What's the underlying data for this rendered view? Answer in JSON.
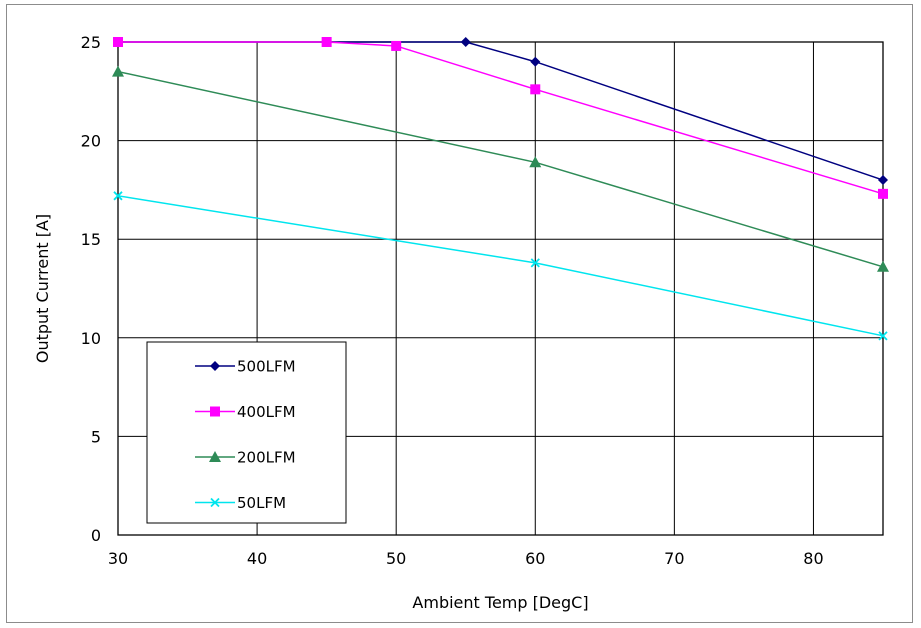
{
  "chart_data": {
    "type": "line",
    "title": "",
    "xlabel": "Ambient Temp [DegC]",
    "ylabel": "Output Current [A]",
    "xlim": [
      30,
      85
    ],
    "ylim": [
      0,
      25
    ],
    "xticks": [
      30,
      40,
      50,
      60,
      70,
      80
    ],
    "yticks": [
      0,
      5,
      10,
      15,
      20,
      25
    ],
    "grid": true,
    "legend_position": "bottom-left",
    "series": [
      {
        "name": "500LFM",
        "color": "#000080",
        "marker": "diamond",
        "x": [
          30,
          55,
          60,
          85
        ],
        "y": [
          25,
          25,
          24,
          18
        ]
      },
      {
        "name": "400LFM",
        "color": "#ff00ff",
        "marker": "square",
        "x": [
          30,
          45,
          50,
          60,
          85
        ],
        "y": [
          25,
          25,
          24.8,
          22.6,
          17.3
        ]
      },
      {
        "name": "200LFM",
        "color": "#2e8b57",
        "marker": "triangle",
        "x": [
          30,
          60,
          85
        ],
        "y": [
          23.5,
          18.9,
          13.6
        ]
      },
      {
        "name": "50LFM",
        "color": "#00e5ee",
        "marker": "x",
        "x": [
          30,
          60,
          85
        ],
        "y": [
          17.2,
          13.8,
          10.1
        ]
      }
    ]
  }
}
